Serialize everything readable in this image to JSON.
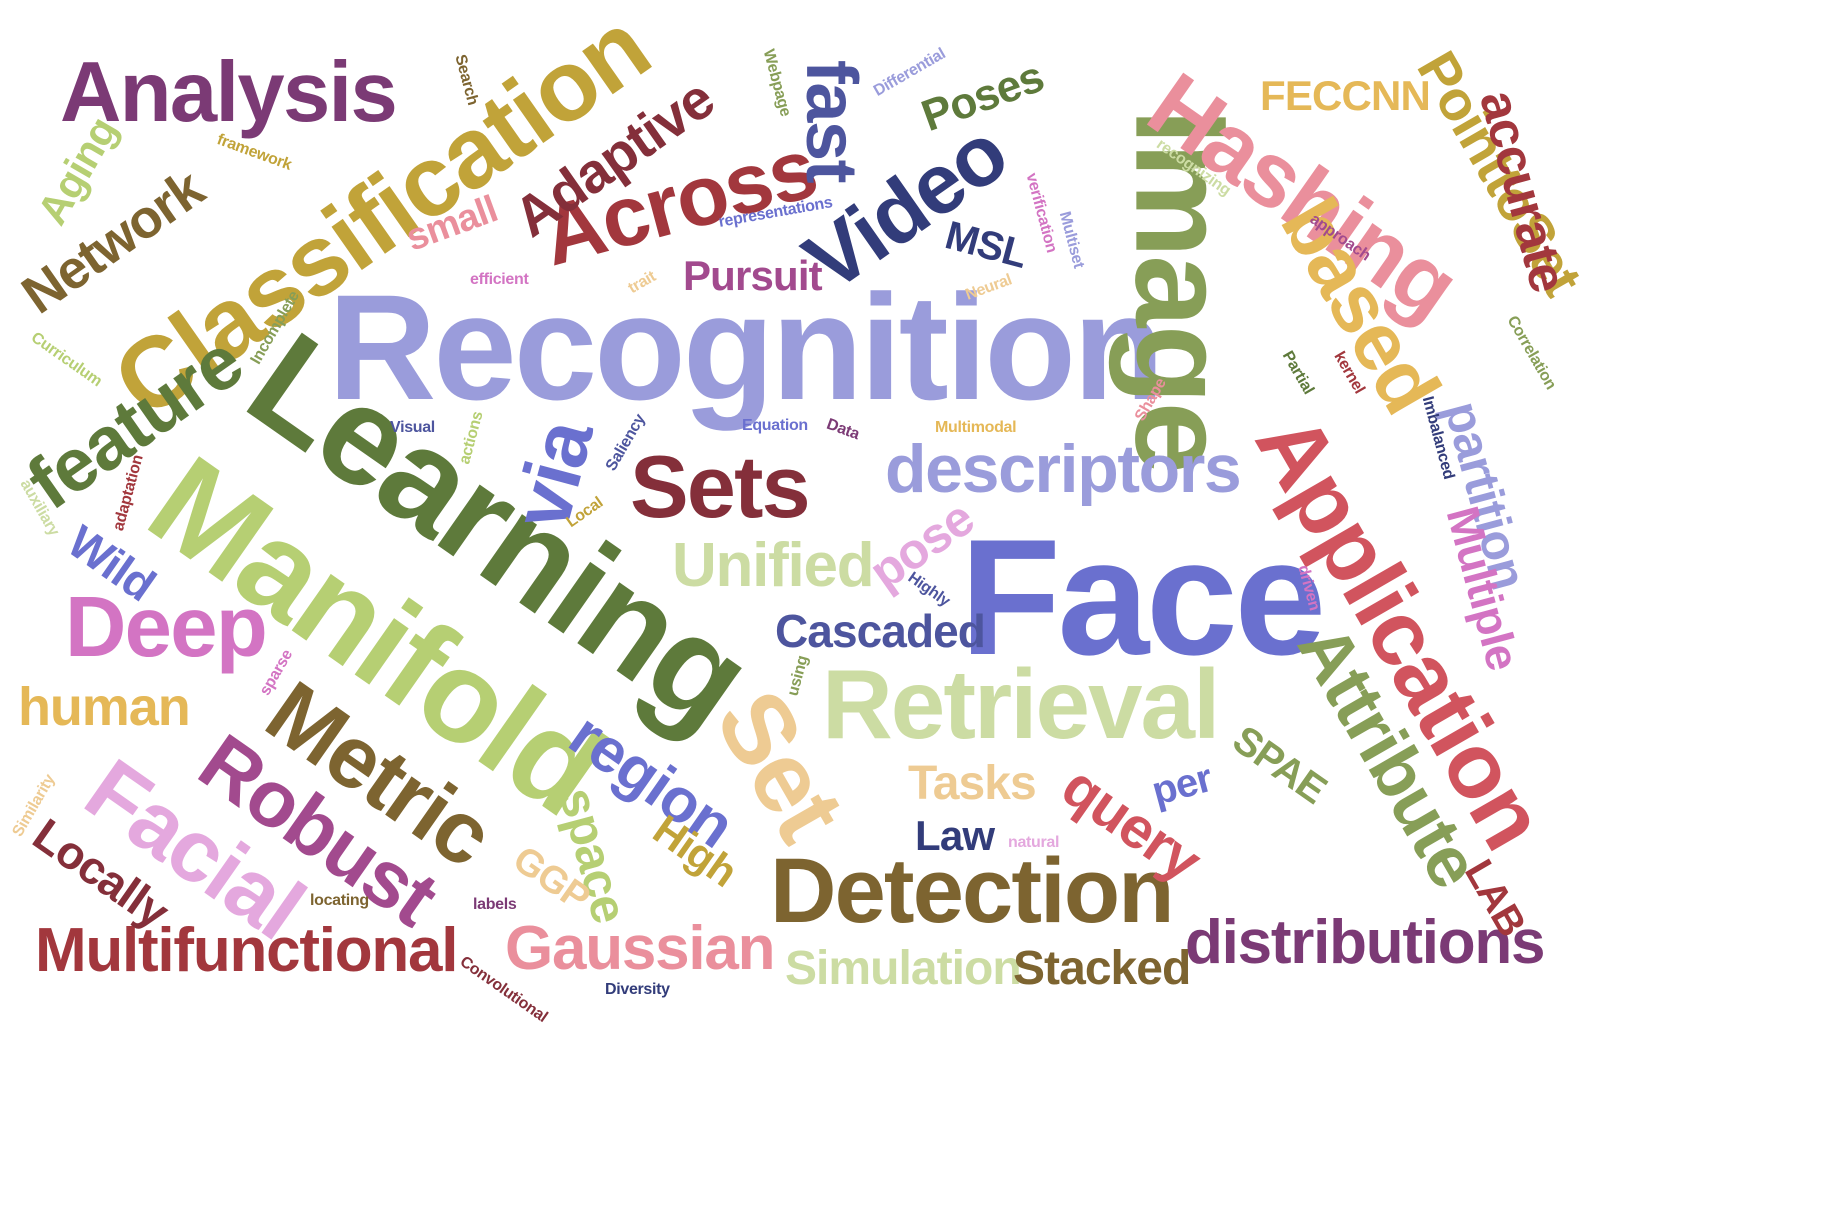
{
  "words": [
    {
      "text": "Recognition",
      "color": "#9A9CDB",
      "rot": 0
    },
    {
      "text": "Learning",
      "color": "#5E7A3B",
      "rot": 35
    },
    {
      "text": "Face",
      "color": "#6A70CF",
      "rot": 0
    },
    {
      "text": "Manifold",
      "color": "#B6CF73",
      "rot": 35
    },
    {
      "text": "Image",
      "color": "#879E57",
      "rot": 90
    },
    {
      "text": "Classification",
      "color": "#C1A339",
      "rot": -35
    },
    {
      "text": "Application",
      "color": "#D1545E",
      "rot": 60
    },
    {
      "text": "Retrieval",
      "color": "#CCDCA3",
      "rot": 0
    },
    {
      "text": "Detection",
      "color": "#7D6430",
      "rot": 0
    },
    {
      "text": "Hashing",
      "color": "#EA8F9C",
      "rot": 35
    },
    {
      "text": "Analysis",
      "color": "#7B3A75",
      "rot": 0
    },
    {
      "text": "Video",
      "color": "#323C7A",
      "rot": -35
    },
    {
      "text": "Across",
      "color": "#A2373D",
      "rot": -15
    },
    {
      "text": "Sets",
      "color": "#842F3A",
      "rot": 0
    },
    {
      "text": "Metric",
      "color": "#7D6430",
      "rot": 35
    },
    {
      "text": "Robust",
      "color": "#A24A8E",
      "rot": 35
    },
    {
      "text": "Facial",
      "color": "#E4A8DE",
      "rot": 35
    },
    {
      "text": "Deep",
      "color": "#D374C3",
      "rot": 0
    },
    {
      "text": "Set",
      "color": "#EECB93",
      "rot": 60
    },
    {
      "text": "based",
      "color": "#E5B857",
      "rot": 60
    },
    {
      "text": "descriptors",
      "color": "#9A9CDB",
      "rot": 0
    },
    {
      "text": "Attribute",
      "color": "#879E57",
      "rot": 60
    },
    {
      "text": "Multifunctional",
      "color": "#A2373D",
      "rot": 0
    },
    {
      "text": "distributions",
      "color": "#7B3A75",
      "rot": 0
    },
    {
      "text": "feature",
      "color": "#5E7A3B",
      "rot": -35
    },
    {
      "text": "Gaussian",
      "color": "#EA8F9C",
      "rot": 0
    },
    {
      "text": "Unified",
      "color": "#CCDCA3",
      "rot": 0
    },
    {
      "text": "region",
      "color": "#6A70CF",
      "rot": 35
    },
    {
      "text": "query",
      "color": "#D1545E",
      "rot": 35
    },
    {
      "text": "fast",
      "color": "#4D559E",
      "rot": 90
    },
    {
      "text": "PointtoSet",
      "color": "#C1A339",
      "rot": 60
    },
    {
      "text": "Adaptive",
      "color": "#842F3A",
      "rot": -35
    },
    {
      "text": "Network",
      "color": "#7D6430",
      "rot": -35
    },
    {
      "text": "via",
      "color": "#6A70CF",
      "rot": -75
    },
    {
      "text": "accurate",
      "color": "#A2373D",
      "rot": 75
    },
    {
      "text": "partition",
      "color": "#9A9CDB",
      "rot": 75
    },
    {
      "text": "Multiple",
      "color": "#D374C3",
      "rot": 75
    },
    {
      "text": "Locally",
      "color": "#842F3A",
      "rot": 35
    },
    {
      "text": "space",
      "color": "#B6CF73",
      "rot": 75
    },
    {
      "text": "Simulation",
      "color": "#CCDCA3",
      "rot": 0
    },
    {
      "text": "Stacked",
      "color": "#7D6430",
      "rot": 0
    },
    {
      "text": "Cascaded",
      "color": "#4D559E",
      "rot": 0
    },
    {
      "text": "human",
      "color": "#E5B857",
      "rot": 0
    },
    {
      "text": "Tasks",
      "color": "#EECB93",
      "rot": 0
    },
    {
      "text": "Pursuit",
      "color": "#A24A8E",
      "rot": 0
    },
    {
      "text": "Wild",
      "color": "#6A70CF",
      "rot": 35
    },
    {
      "text": "pose",
      "color": "#E4A8DE",
      "rot": -35
    },
    {
      "text": "FECCNN",
      "color": "#E5B857",
      "rot": 0
    },
    {
      "text": "Poses",
      "color": "#5E7A3B",
      "rot": -20
    },
    {
      "text": "High",
      "color": "#C1A339",
      "rot": 35
    },
    {
      "text": "Law",
      "color": "#323C7A",
      "rot": 0
    },
    {
      "text": "SPAE",
      "color": "#879E57",
      "rot": 35
    },
    {
      "text": "LAB",
      "color": "#A2373D",
      "rot": 60
    },
    {
      "text": "GGP",
      "color": "#EECB93",
      "rot": 35
    },
    {
      "text": "small",
      "color": "#EA8F9C",
      "rot": -20
    },
    {
      "text": "Aging",
      "color": "#B6CF73",
      "rot": -60
    },
    {
      "text": "MSL",
      "color": "#323C7A",
      "rot": 15
    },
    {
      "text": "per",
      "color": "#6A70CF",
      "rot": -15
    },
    {
      "text": "Search",
      "color": "#7D6430",
      "rot": 75
    },
    {
      "text": "framework",
      "color": "#C1A339",
      "rot": 20
    },
    {
      "text": "representations",
      "color": "#6A70CF",
      "rot": -10
    },
    {
      "text": "efficient",
      "color": "#D374C3",
      "rot": 0
    },
    {
      "text": "trait",
      "color": "#EECB93",
      "rot": -30
    },
    {
      "text": "Neural",
      "color": "#EECB93",
      "rot": -20
    },
    {
      "text": "Multiset",
      "color": "#9A9CDB",
      "rot": 75
    },
    {
      "text": "verification",
      "color": "#D374C3",
      "rot": 75
    },
    {
      "text": "Webpage",
      "color": "#879E57",
      "rot": 75
    },
    {
      "text": "Differential",
      "color": "#9A9CDB",
      "rot": -30
    },
    {
      "text": "recognizing",
      "color": "#CCDCA3",
      "rot": 35
    },
    {
      "text": "approach",
      "color": "#A24A8E",
      "rot": 35
    },
    {
      "text": "Incomplete",
      "color": "#879E57",
      "rot": -60
    },
    {
      "text": "Curriculum",
      "color": "#B6CF73",
      "rot": 35
    },
    {
      "text": "Visual",
      "color": "#4D559E",
      "rot": 0
    },
    {
      "text": "actions",
      "color": "#B6CF73",
      "rot": -75
    },
    {
      "text": "Equation",
      "color": "#6A70CF",
      "rot": 0
    },
    {
      "text": "Data",
      "color": "#7B3A75",
      "rot": 20
    },
    {
      "text": "Saliency",
      "color": "#4D559E",
      "rot": -60
    },
    {
      "text": "Multimodal",
      "color": "#E5B857",
      "rot": 0
    },
    {
      "text": "Shape",
      "color": "#EA8F9C",
      "rot": -60
    },
    {
      "text": "Partial",
      "color": "#5E7A3B",
      "rot": 60
    },
    {
      "text": "kernel",
      "color": "#A2373D",
      "rot": 60
    },
    {
      "text": "Imbalanced",
      "color": "#323C7A",
      "rot": 75
    },
    {
      "text": "Correlation",
      "color": "#879E57",
      "rot": 60
    },
    {
      "text": "adaptation",
      "color": "#A2373D",
      "rot": -75
    },
    {
      "text": "auxiliary",
      "color": "#CCDCA3",
      "rot": 60
    },
    {
      "text": "Local",
      "color": "#C1A339",
      "rot": -35
    },
    {
      "text": "Highly",
      "color": "#4D559E",
      "rot": 35
    },
    {
      "text": "driven",
      "color": "#D374C3",
      "rot": 75
    },
    {
      "text": "sparse",
      "color": "#D374C3",
      "rot": -60
    },
    {
      "text": "using",
      "color": "#879E57",
      "rot": -75
    },
    {
      "text": "natural",
      "color": "#E4A8DE",
      "rot": 0
    },
    {
      "text": "locating",
      "color": "#7D6430",
      "rot": 0
    },
    {
      "text": "labels",
      "color": "#7B3A75",
      "rot": 0
    },
    {
      "text": "Convolutional",
      "color": "#842F3A",
      "rot": 35
    },
    {
      "text": "Diversity",
      "color": "#323C7A",
      "rot": 0
    },
    {
      "text": "Similarity",
      "color": "#EECB93",
      "rot": -60
    }
  ]
}
